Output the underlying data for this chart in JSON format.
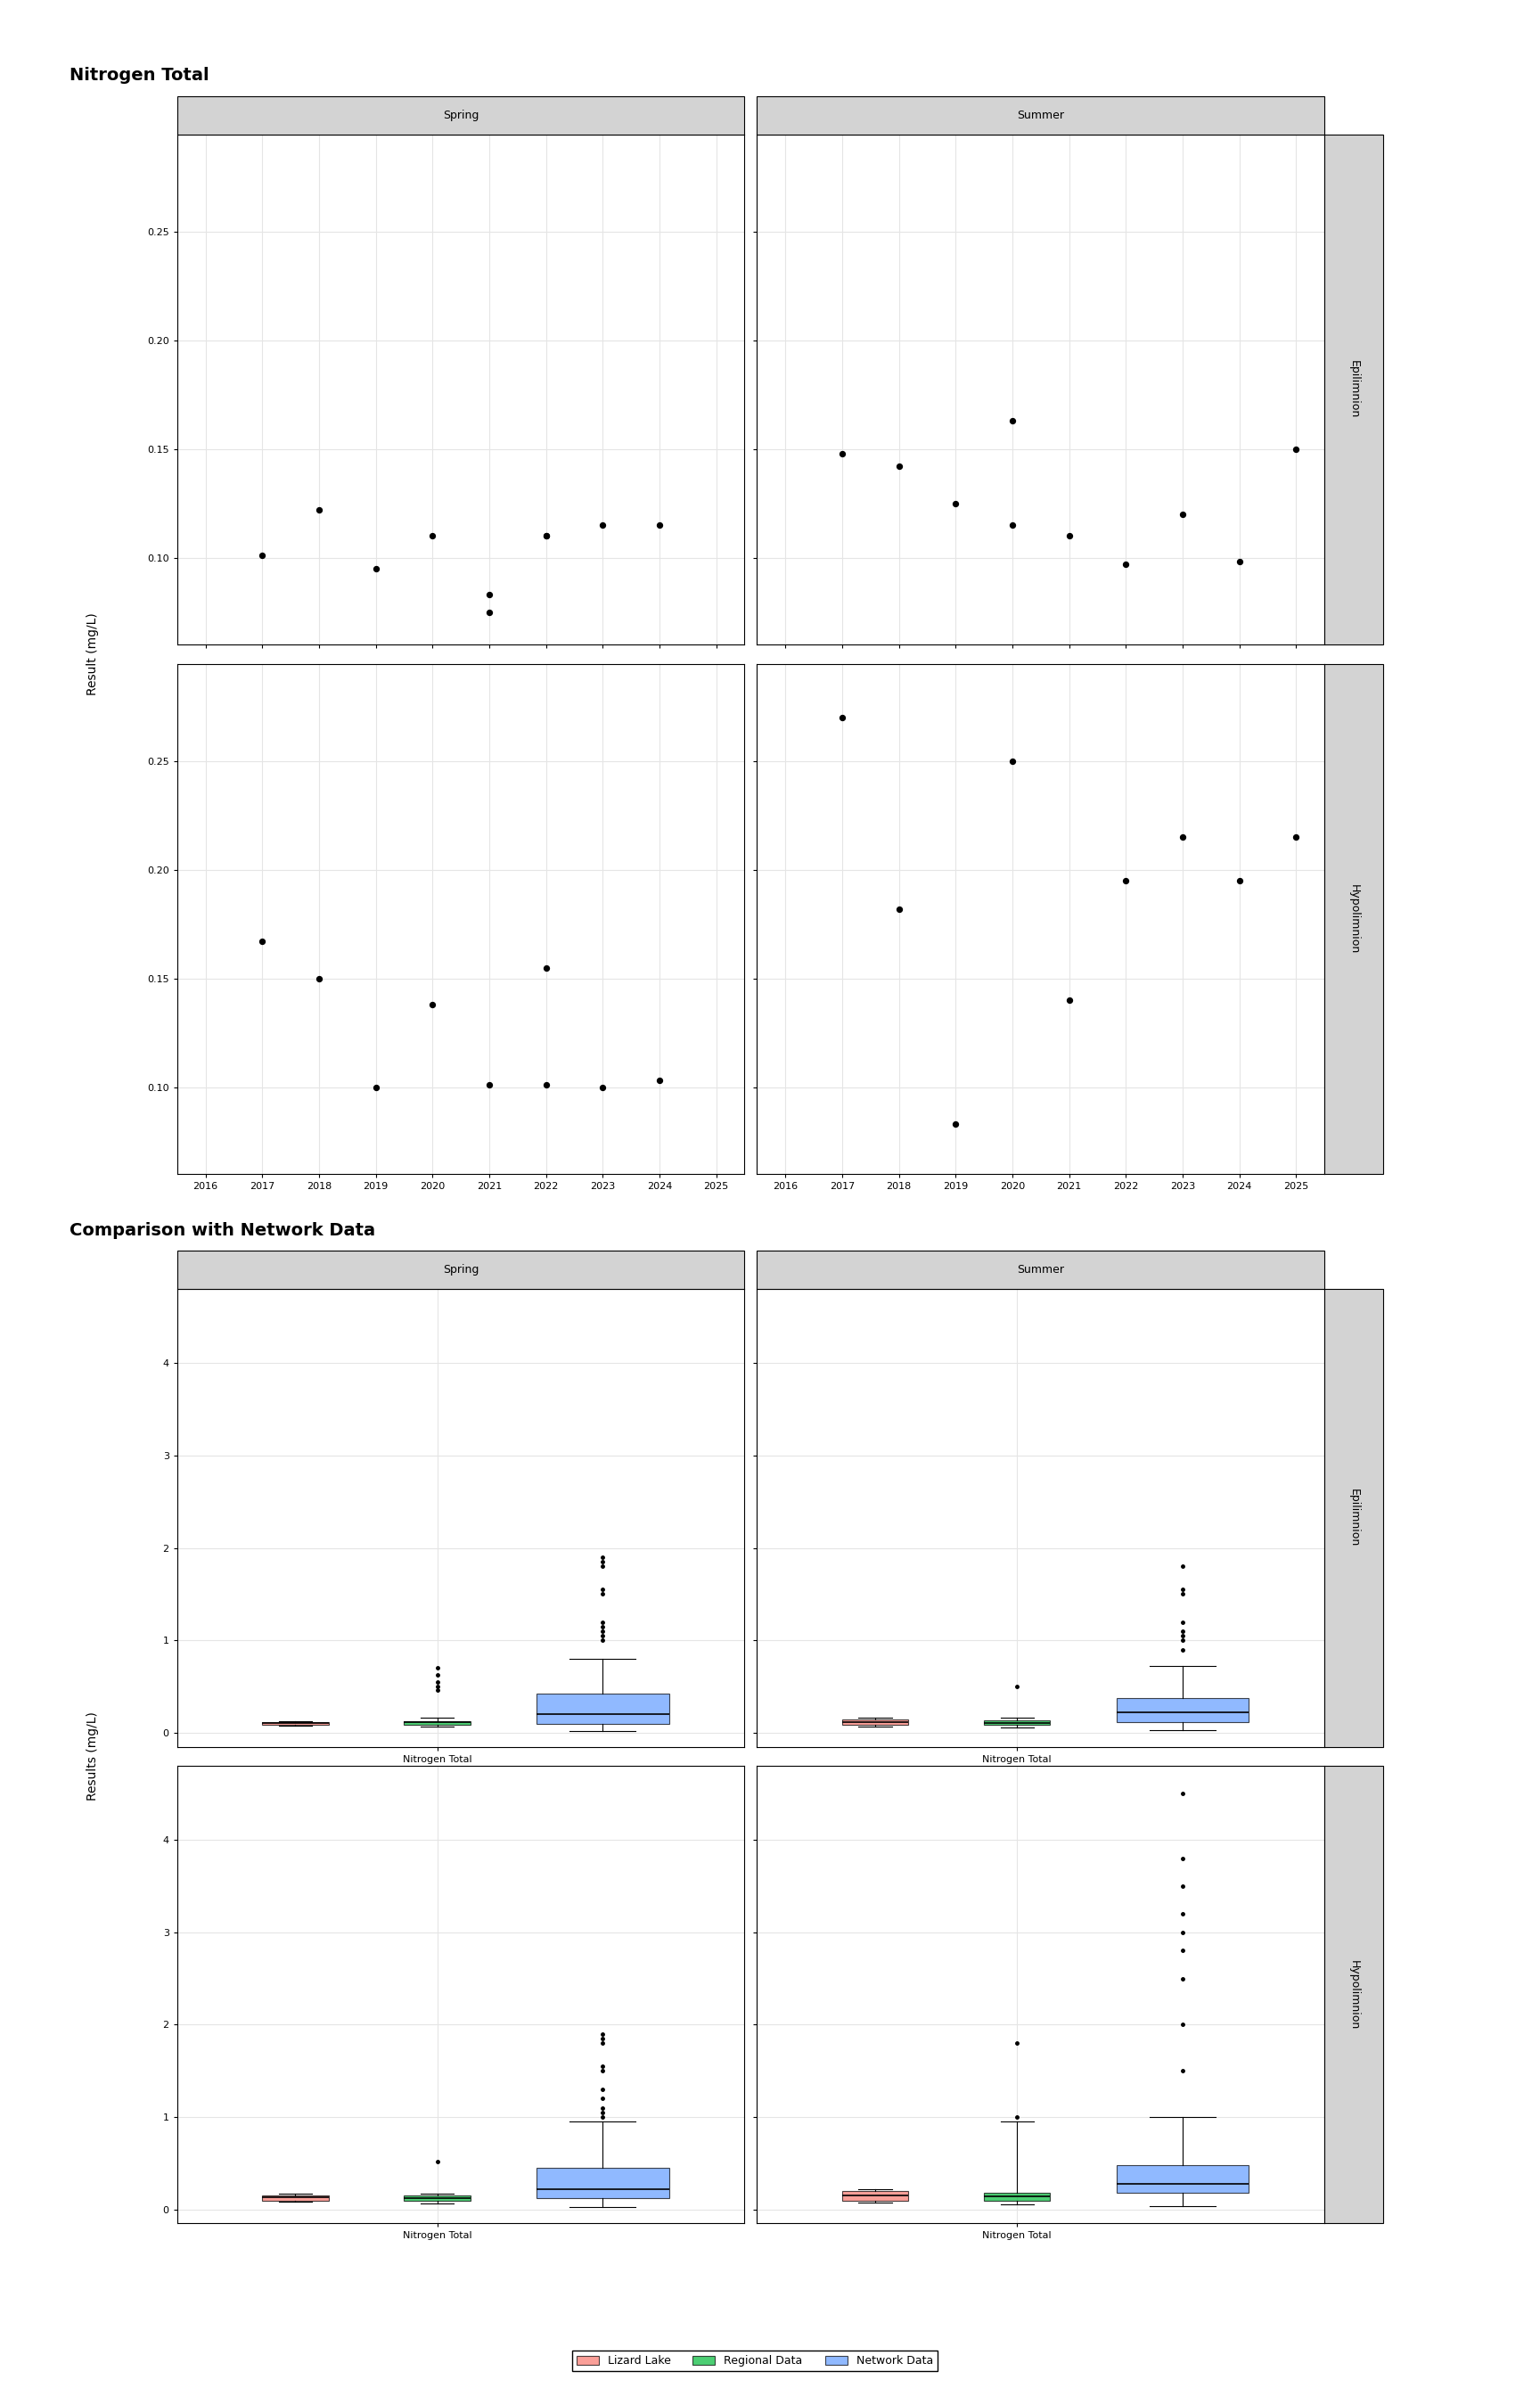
{
  "title1": "Nitrogen Total",
  "title2": "Comparison with Network Data",
  "ylabel1": "Result (mg/L)",
  "ylabel2": "Results (mg/L)",
  "xlabel_box": "Nitrogen Total",
  "seasons": [
    "Spring",
    "Summer"
  ],
  "strata": [
    "Epilimnion",
    "Hypolimnion"
  ],
  "scatter": {
    "spring_epi": {
      "x": [
        2017,
        2018,
        2019,
        2020,
        2021,
        2021,
        2022,
        2022,
        2023,
        2024
      ],
      "y": [
        0.101,
        0.122,
        0.095,
        0.11,
        0.083,
        0.075,
        0.11,
        0.11,
        0.115,
        0.115
      ]
    },
    "spring_hypo": {
      "x": [
        2017,
        2018,
        2019,
        2020,
        2021,
        2022,
        2022,
        2023,
        2024
      ],
      "y": [
        0.167,
        0.15,
        0.1,
        0.138,
        0.101,
        0.101,
        0.155,
        0.1,
        0.103
      ]
    },
    "summer_epi": {
      "x": [
        2017,
        2018,
        2019,
        2020,
        2020,
        2021,
        2022,
        2023,
        2024,
        2025
      ],
      "y": [
        0.148,
        0.142,
        0.125,
        0.115,
        0.163,
        0.11,
        0.097,
        0.12,
        0.098,
        0.15
      ]
    },
    "summer_hypo": {
      "x": [
        2017,
        2018,
        2019,
        2020,
        2021,
        2022,
        2023,
        2024,
        2025
      ],
      "y": [
        0.27,
        0.182,
        0.083,
        0.25,
        0.14,
        0.195,
        0.215,
        0.195,
        0.215
      ]
    }
  },
  "scatter_xlim": [
    2015.5,
    2025.5
  ],
  "scatter_xticks": [
    2016,
    2017,
    2018,
    2019,
    2020,
    2021,
    2022,
    2023,
    2024,
    2025
  ],
  "scatter_ylim": [
    0.06,
    0.295
  ],
  "scatter_yticks": [
    0.1,
    0.15,
    0.2,
    0.25
  ],
  "lizard_lake_color": "#F8766D",
  "regional_data_color": "#00BA38",
  "network_data_color": "#619CFF",
  "strip_bg": "#D3D3D3",
  "grid_color": "#E5E5E5",
  "point_color": "#000000",
  "box_data": {
    "spring_epi_lizard": {
      "q1": 0.09,
      "median": 0.105,
      "q3": 0.115,
      "whislo": 0.075,
      "whishi": 0.125,
      "fliers": []
    },
    "spring_epi_regional": {
      "q1": 0.09,
      "median": 0.115,
      "q3": 0.13,
      "whislo": 0.07,
      "whishi": 0.165,
      "fliers": [
        0.46,
        0.5,
        0.55,
        0.63,
        0.7
      ]
    },
    "spring_epi_network": {
      "q1": 0.1,
      "median": 0.2,
      "q3": 0.42,
      "whislo": 0.02,
      "whishi": 0.8,
      "fliers": [
        1.0,
        1.05,
        1.1,
        1.15,
        1.2,
        1.5,
        1.55,
        1.8,
        1.85,
        1.9
      ]
    },
    "spring_hypo_lizard": {
      "q1": 0.1,
      "median": 0.13,
      "q3": 0.155,
      "whislo": 0.09,
      "whishi": 0.168,
      "fliers": []
    },
    "spring_hypo_regional": {
      "q1": 0.1,
      "median": 0.125,
      "q3": 0.155,
      "whislo": 0.07,
      "whishi": 0.17,
      "fliers": [
        0.52
      ]
    },
    "spring_hypo_network": {
      "q1": 0.12,
      "median": 0.22,
      "q3": 0.45,
      "whislo": 0.03,
      "whishi": 0.95,
      "fliers": [
        1.0,
        1.05,
        1.1,
        1.2,
        1.3,
        1.5,
        1.55,
        1.8,
        1.85,
        1.9
      ]
    },
    "summer_epi_lizard": {
      "q1": 0.09,
      "median": 0.115,
      "q3": 0.14,
      "whislo": 0.07,
      "whishi": 0.16,
      "fliers": []
    },
    "summer_epi_regional": {
      "q1": 0.09,
      "median": 0.11,
      "q3": 0.135,
      "whislo": 0.06,
      "whishi": 0.165,
      "fliers": [
        0.5
      ]
    },
    "summer_epi_network": {
      "q1": 0.12,
      "median": 0.22,
      "q3": 0.38,
      "whislo": 0.03,
      "whishi": 0.72,
      "fliers": [
        0.9,
        1.0,
        1.05,
        1.1,
        1.2,
        1.5,
        1.55,
        1.8
      ]
    },
    "summer_hypo_lizard": {
      "q1": 0.1,
      "median": 0.15,
      "q3": 0.2,
      "whislo": 0.08,
      "whishi": 0.225,
      "fliers": []
    },
    "summer_hypo_regional": {
      "q1": 0.1,
      "median": 0.14,
      "q3": 0.185,
      "whislo": 0.06,
      "whishi": 0.95,
      "fliers": [
        1.0,
        1.8
      ]
    },
    "summer_hypo_network": {
      "q1": 0.18,
      "median": 0.28,
      "q3": 0.48,
      "whislo": 0.04,
      "whishi": 1.0,
      "fliers": [
        1.5,
        2.0,
        2.5,
        2.8,
        3.0,
        3.2,
        3.5,
        3.8,
        4.5
      ]
    }
  },
  "legend_labels": [
    "Lizard Lake",
    "Regional Data",
    "Network Data"
  ],
  "legend_colors": [
    "#F8766D",
    "#00BA38",
    "#619CFF"
  ]
}
